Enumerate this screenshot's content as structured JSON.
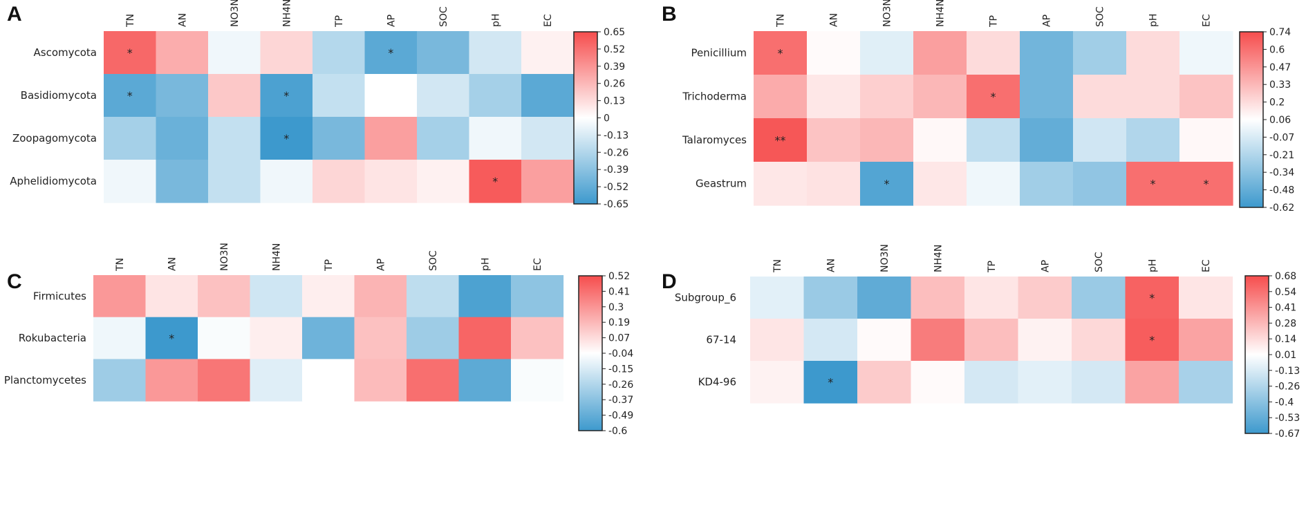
{
  "figure": {
    "panel_letters": [
      "A",
      "B",
      "C",
      "D"
    ]
  },
  "chart_data": [
    {
      "type": "heatmap",
      "panel": "A",
      "columns": [
        "TN",
        "AN",
        "NO3N",
        "NH4N",
        "TP",
        "AP",
        "SOC",
        "pH",
        "EC"
      ],
      "rows": [
        "Ascomycota",
        "Basidiomycota",
        "Zoopagomycota",
        "Aphelidiomycota"
      ],
      "values": [
        [
          0.55,
          0.3,
          -0.05,
          0.15,
          -0.25,
          -0.55,
          -0.45,
          -0.15,
          0.05
        ],
        [
          -0.55,
          -0.45,
          0.2,
          -0.6,
          -0.2,
          0.0,
          -0.15,
          -0.3,
          -0.55
        ],
        [
          -0.3,
          -0.5,
          -0.2,
          -0.65,
          -0.45,
          0.35,
          -0.3,
          -0.05,
          -0.15
        ],
        [
          -0.05,
          -0.45,
          -0.2,
          -0.05,
          0.15,
          0.1,
          0.05,
          0.6,
          0.35
        ]
      ],
      "stars": [
        [
          "*",
          "",
          "",
          "",
          "",
          "*",
          "",
          "",
          ""
        ],
        [
          "*",
          "",
          "",
          "*",
          "",
          "",
          "",
          "",
          ""
        ],
        [
          "",
          "",
          "",
          "*",
          "",
          "",
          "",
          "",
          ""
        ],
        [
          "",
          "",
          "",
          "",
          "",
          "",
          "",
          "*",
          ""
        ]
      ],
      "colorbar_ticks": [
        "0.65",
        "0.52",
        "0.39",
        "0.26",
        "0.13",
        "0",
        "-0.13",
        "-0.26",
        "-0.39",
        "-0.52",
        "-0.65"
      ],
      "vmin": -0.65,
      "vmax": 0.65
    },
    {
      "type": "heatmap",
      "panel": "B",
      "columns": [
        "TN",
        "AN",
        "NO3N",
        "NH4N",
        "TP",
        "AP",
        "SOC",
        "pH",
        "EC"
      ],
      "rows": [
        "Penicillium",
        "Trichoderma",
        "Talaromyces",
        "Geastrum"
      ],
      "values": [
        [
          0.6,
          0.02,
          -0.1,
          0.4,
          0.15,
          -0.45,
          -0.3,
          0.15,
          -0.05
        ],
        [
          0.35,
          0.1,
          0.2,
          0.3,
          0.6,
          -0.45,
          0.15,
          0.15,
          0.25
        ],
        [
          0.7,
          0.25,
          0.3,
          0.03,
          -0.2,
          -0.5,
          -0.15,
          -0.25,
          0.03
        ],
        [
          0.1,
          0.12,
          -0.55,
          0.1,
          -0.05,
          -0.3,
          -0.35,
          0.6,
          0.6
        ]
      ],
      "stars": [
        [
          "*",
          "",
          "",
          "",
          "",
          "",
          "",
          "",
          ""
        ],
        [
          "",
          "",
          "",
          "",
          "*",
          "",
          "",
          "",
          ""
        ],
        [
          "**",
          "",
          "",
          "",
          "",
          "",
          "",
          "",
          ""
        ],
        [
          "",
          "",
          "*",
          "",
          "",
          "",
          "",
          "*",
          "*"
        ]
      ],
      "colorbar_ticks": [
        "0.74",
        "0.6",
        "0.47",
        "0.33",
        "0.2",
        "0.06",
        "-0.07",
        "-0.21",
        "-0.34",
        "-0.48",
        "-0.62"
      ],
      "vmin": -0.62,
      "vmax": 0.74
    },
    {
      "type": "heatmap",
      "panel": "C",
      "columns": [
        "TN",
        "AN",
        "NO3N",
        "NH4N",
        "TP",
        "AP",
        "SOC",
        "pH",
        "EC"
      ],
      "rows": [
        "Firmicutes",
        "Rokubacteria",
        "Planctomycetes"
      ],
      "values": [
        [
          0.3,
          0.08,
          0.18,
          -0.15,
          0.05,
          0.22,
          -0.2,
          -0.55,
          -0.35
        ],
        [
          -0.05,
          -0.6,
          -0.02,
          0.05,
          -0.45,
          0.18,
          -0.3,
          0.45,
          0.18
        ],
        [
          -0.3,
          0.3,
          0.4,
          -0.1,
          0.0,
          0.2,
          0.42,
          -0.5,
          -0.02
        ]
      ],
      "stars": [
        [
          "",
          "",
          "",
          "",
          "",
          "",
          "",
          "",
          ""
        ],
        [
          "",
          "*",
          "",
          "",
          "",
          "",
          "",
          "",
          ""
        ],
        [
          "",
          "",
          "",
          "",
          "",
          "",
          "",
          "",
          ""
        ]
      ],
      "colorbar_ticks": [
        "0.52",
        "0.41",
        "0.3",
        "0.19",
        "0.07",
        "-0.04",
        "-0.15",
        "-0.26",
        "-0.37",
        "-0.49",
        "-0.6"
      ],
      "vmin": -0.6,
      "vmax": 0.52
    },
    {
      "type": "heatmap",
      "panel": "D",
      "columns": [
        "TN",
        "AN",
        "NO3N",
        "NH4N",
        "TP",
        "AP",
        "SOC",
        "pH",
        "EC"
      ],
      "rows": [
        "Subgroup_6",
        "67-14",
        "KD4-96"
      ],
      "values": [
        [
          -0.1,
          -0.35,
          -0.55,
          0.25,
          0.1,
          0.2,
          -0.35,
          0.6,
          0.1
        ],
        [
          0.1,
          -0.15,
          0.02,
          0.5,
          0.25,
          0.05,
          0.15,
          0.62,
          0.35
        ],
        [
          0.05,
          -0.67,
          0.2,
          0.02,
          -0.15,
          -0.1,
          -0.15,
          0.35,
          -0.3
        ]
      ],
      "stars": [
        [
          "",
          "",
          "",
          "",
          "",
          "",
          "",
          "*",
          ""
        ],
        [
          "",
          "",
          "",
          "",
          "",
          "",
          "",
          "*",
          ""
        ],
        [
          "",
          "*",
          "",
          "",
          "",
          "",
          "",
          "",
          ""
        ]
      ],
      "colorbar_ticks": [
        "0.68",
        "0.54",
        "0.41",
        "0.28",
        "0.14",
        "0.01",
        "-0.13",
        "-0.26",
        "-0.4",
        "-0.53",
        "-0.67"
      ],
      "vmin": -0.67,
      "vmax": 0.68
    }
  ]
}
